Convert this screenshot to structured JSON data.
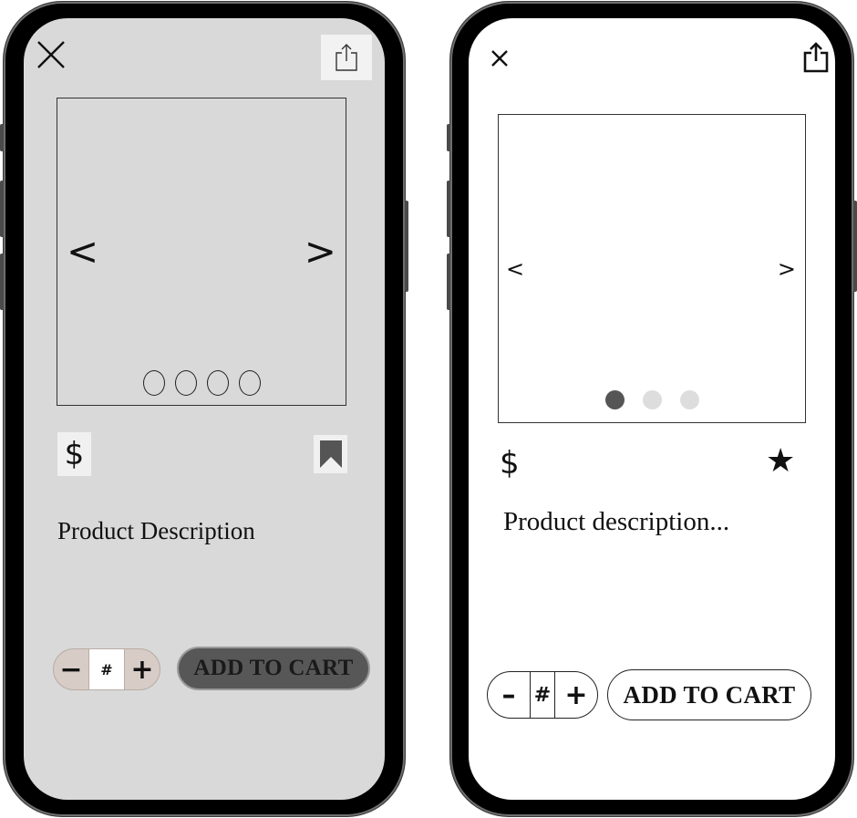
{
  "left_mockup": {
    "carousel": {
      "prev_glyph": "<",
      "next_glyph": ">",
      "page_count": 4
    },
    "price_symbol": "$",
    "description": "Product Description",
    "quantity": {
      "decrement": "−",
      "value": "#",
      "increment": "+"
    },
    "add_to_cart": "ADD TO CART",
    "colors": {
      "screen_bg": "#d9d9d9",
      "cart_button_bg": "#575757",
      "stepper_bg": "#d8ccc6"
    },
    "icons": {
      "close": "close-icon",
      "share": "share-icon",
      "bookmark": "bookmark-icon"
    }
  },
  "right_mockup": {
    "carousel": {
      "prev_glyph": "<",
      "next_glyph": ">",
      "page_count": 3,
      "active_page": 1
    },
    "price_symbol": "$",
    "favorite_glyph": "★",
    "description": "Product description...",
    "quantity": {
      "decrement": "–",
      "value": "#",
      "increment": "+"
    },
    "add_to_cart": "ADD TO CART",
    "colors": {
      "screen_bg": "#ffffff",
      "active_dot": "#555555",
      "inactive_dot": "#dddddd"
    },
    "icons": {
      "close": "close-icon",
      "share": "share-icon",
      "favorite": "star-icon"
    }
  }
}
